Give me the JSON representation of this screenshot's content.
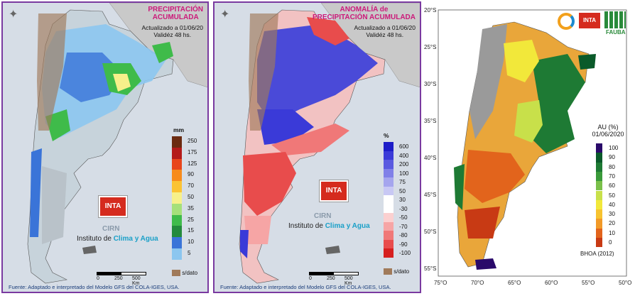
{
  "panel1": {
    "title_lines": [
      "PRECIPITACIÓN",
      "ACUMULADA"
    ],
    "updated": "Actualizado a 01/06/20",
    "validity": "Validéz 48 hs.",
    "unit": "mm",
    "legend_values": [
      "250",
      "175",
      "125",
      "90",
      "70",
      "50",
      "35",
      "25",
      "15",
      "10",
      "5"
    ],
    "legend_colors": [
      "#6b2a10",
      "#b41a1a",
      "#e8451c",
      "#f78b1c",
      "#fbc334",
      "#f7f08a",
      "#a6e07a",
      "#3fbb4a",
      "#238a3c",
      "#3a74d8",
      "#8cc6ef"
    ],
    "nodata_label": "s/dato",
    "scale_labels": [
      "0",
      "250",
      "500 Km"
    ],
    "source": "Fuente: Adaptado e interpretado del Modelo GFS del COLA-IGES, USA."
  },
  "panel2": {
    "title_lines": [
      "ANOMALÍA de",
      "PRECIPITACIÓN ACUMULADA"
    ],
    "updated": "Actualizado a 01/06/20",
    "validity": "Validéz 48 hs.",
    "unit": "%",
    "legend_values": [
      "600",
      "400",
      "200",
      "100",
      "75",
      "50",
      "30",
      "-30",
      "-50",
      "-70",
      "-80",
      "-90",
      "-100"
    ],
    "legend_colors": [
      "#1d1dc8",
      "#3a3ad8",
      "#5a5ae0",
      "#8080e8",
      "#a5a5ee",
      "#c8c8f4",
      "#ffffff",
      "#ffffff",
      "#fbd0d0",
      "#f6a5a5",
      "#f07878",
      "#e84c4c",
      "#d61f1f"
    ],
    "nodata_label": "s/dato",
    "scale_labels": [
      "0",
      "250",
      "500 Km"
    ],
    "source": "Fuente: Adaptado e interpretado del Modelo GFS del COLA-IGES, USA."
  },
  "branding": {
    "inta": "INTA",
    "cirn": "CIRN",
    "institute_prefix": "Instituto de ",
    "institute_highlight": "Clima y Agua"
  },
  "panel3": {
    "logo_text": "FAUBA",
    "inta": "INTA",
    "legend_title": "AU (%)",
    "legend_date": "01/06/2020",
    "legend_values": [
      "100",
      "90",
      "80",
      "70",
      "60",
      "50",
      "40",
      "30",
      "20",
      "10",
      "0"
    ],
    "legend_colors": [
      "#2a0a6a",
      "#0a5a2a",
      "#1e7a34",
      "#3a9a3a",
      "#7ac04a",
      "#c8e04a",
      "#f2e83a",
      "#f7c330",
      "#f29a28",
      "#e2641c",
      "#c83a14"
    ],
    "footer": "BHOA (2012)",
    "lat_labels": [
      "20°S",
      "25°S",
      "30°S",
      "35°S",
      "40°S",
      "45°S",
      "50°S",
      "55°S"
    ],
    "lon_labels": [
      "75°O",
      "70°O",
      "65°O",
      "60°O",
      "55°O",
      "50°O"
    ]
  },
  "colors": {
    "border": "#7a3aa0",
    "title_magenta": "#cc1a7a",
    "source_blue": "#1b3d7a"
  }
}
